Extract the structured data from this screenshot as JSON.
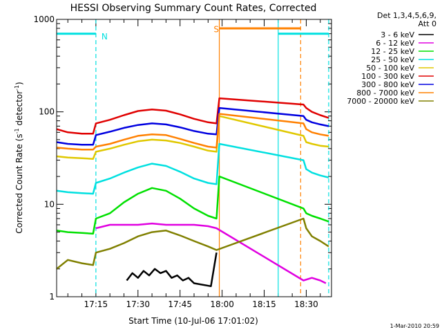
{
  "chart_data": {
    "type": "line",
    "title": "HESSI Observing Summary Count Rates, Corrected",
    "xlabel": "Start Time (10-Jul-06 17:01:02)",
    "ylabel": "Corrected Count Rate (s",
    "ylabel_sup1": "-1",
    "ylabel_mid": " detector",
    "ylabel_sup2": "-1",
    "ylabel_end": ")",
    "y_scale": "log",
    "ylim": [
      1,
      1000
    ],
    "xlim": [
      "17:01",
      "18:39"
    ],
    "x_ticks": [
      "17:15",
      "17:30",
      "17:45",
      "18:00",
      "18:15",
      "18:30"
    ],
    "y_ticks": [
      "1",
      "10",
      "100",
      "1000"
    ],
    "timestamp": "1-Mar-2010 20:59",
    "legend_title_line1": "Det 1,3,4,5,6,9,",
    "legend_title_line2": "Att 0",
    "annotations": [
      {
        "label": "N",
        "color": "#00e0e0"
      },
      {
        "label": "S",
        "color": "#ff8000"
      }
    ],
    "flag_bars": [
      {
        "name": "night",
        "color": "#00e0e0",
        "intervals": [
          [
            "17:01",
            "17:15"
          ],
          [
            "18:20",
            "18:38"
          ]
        ],
        "level": 700
      },
      {
        "name": "saa",
        "color": "#ff8000",
        "intervals": [
          [
            "17:59",
            "18:28"
          ]
        ],
        "level": 800
      }
    ],
    "vertical_lines": [
      {
        "time": "17:15",
        "color": "#00e0e0",
        "style": "dashed"
      },
      {
        "time": "18:20",
        "color": "#00e0e0",
        "style": "solid"
      },
      {
        "time": "18:38",
        "color": "#00e0e0",
        "style": "dashed"
      },
      {
        "time": "17:59",
        "color": "#ff8000",
        "style": "solid"
      },
      {
        "time": "18:28",
        "color": "#ff8000",
        "style": "dashed"
      }
    ],
    "series": [
      {
        "name": "3 - 6 keV",
        "color": "#000000",
        "x": [
          "17:26",
          "17:28",
          "17:30",
          "17:32",
          "17:34",
          "17:36",
          "17:38",
          "17:40",
          "17:42",
          "17:44",
          "17:46",
          "17:48",
          "17:50",
          "17:56",
          "17:58"
        ],
        "y": [
          1.5,
          1.8,
          1.6,
          1.9,
          1.7,
          2.0,
          1.8,
          1.9,
          1.6,
          1.7,
          1.5,
          1.6,
          1.4,
          1.3,
          3.0
        ]
      },
      {
        "name": "6 - 12 keV",
        "color": "#e000e0",
        "x": [
          "17:15",
          "17:20",
          "17:25",
          "17:30",
          "17:35",
          "17:40",
          "17:45",
          "17:50",
          "17:55",
          "17:58",
          "18:29",
          "18:32",
          "18:35",
          "18:37"
        ],
        "y": [
          5.5,
          6.0,
          6.0,
          6.0,
          6.2,
          6.0,
          6.0,
          6.0,
          5.8,
          5.5,
          1.5,
          1.6,
          1.5,
          1.4
        ]
      },
      {
        "name": "12 - 25 keV",
        "color": "#00e000",
        "x": [
          "17:01",
          "17:05",
          "17:10",
          "17:14",
          "17:15",
          "17:20",
          "17:25",
          "17:30",
          "17:35",
          "17:40",
          "17:45",
          "17:50",
          "17:55",
          "17:58",
          "17:59",
          "18:29",
          "18:30",
          "18:32",
          "18:35",
          "18:38"
        ],
        "y": [
          5.2,
          5.0,
          4.9,
          4.8,
          7.0,
          8.0,
          10.5,
          13.0,
          15.0,
          14.0,
          11.5,
          9.0,
          7.5,
          7.0,
          20.0,
          9.0,
          8.0,
          7.5,
          7.0,
          6.5
        ]
      },
      {
        "name": "25 - 50 keV",
        "color": "#00e0e0",
        "x": [
          "17:01",
          "17:05",
          "17:10",
          "17:14",
          "17:15",
          "17:20",
          "17:25",
          "17:30",
          "17:35",
          "17:40",
          "17:45",
          "17:50",
          "17:55",
          "17:58",
          "17:59",
          "18:29",
          "18:30",
          "18:32",
          "18:35",
          "18:38"
        ],
        "y": [
          14.0,
          13.5,
          13.2,
          13.0,
          17.0,
          19.0,
          22.0,
          25.0,
          27.5,
          26.0,
          22.5,
          19.0,
          17.0,
          16.5,
          45.0,
          30.0,
          24.0,
          22.0,
          20.5,
          19.5
        ]
      },
      {
        "name": "50 - 100 keV",
        "color": "#e0c800",
        "x": [
          "17:01",
          "17:05",
          "17:10",
          "17:14",
          "17:15",
          "17:20",
          "17:25",
          "17:30",
          "17:35",
          "17:40",
          "17:45",
          "17:50",
          "17:55",
          "17:58",
          "17:59",
          "18:29",
          "18:30",
          "18:32",
          "18:35",
          "18:38"
        ],
        "y": [
          33.0,
          32.0,
          31.5,
          31.0,
          37.0,
          40.0,
          44.0,
          48.0,
          50.0,
          49.0,
          46.0,
          42.0,
          38.0,
          37.0,
          90.0,
          55.0,
          47.0,
          45.0,
          43.0,
          42.0
        ]
      },
      {
        "name": "100 - 300 keV",
        "color": "#e00000",
        "x": [
          "17:01",
          "17:05",
          "17:10",
          "17:14",
          "17:15",
          "17:20",
          "17:25",
          "17:30",
          "17:35",
          "17:40",
          "17:45",
          "17:50",
          "17:55",
          "17:58",
          "17:59",
          "18:29",
          "18:30",
          "18:32",
          "18:35",
          "18:38"
        ],
        "y": [
          65.0,
          60.0,
          58.0,
          58.0,
          75.0,
          82.0,
          92.0,
          102.0,
          106.0,
          103.0,
          94.0,
          84.0,
          77.0,
          75.0,
          140.0,
          120.0,
          110.0,
          100.0,
          92.0,
          86.0
        ]
      },
      {
        "name": "300 - 800 keV",
        "color": "#0000e0",
        "x": [
          "17:01",
          "17:05",
          "17:10",
          "17:14",
          "17:15",
          "17:20",
          "17:25",
          "17:30",
          "17:35",
          "17:40",
          "17:45",
          "17:50",
          "17:55",
          "17:58",
          "17:59",
          "18:29",
          "18:30",
          "18:32",
          "18:35",
          "18:38"
        ],
        "y": [
          47.0,
          45.0,
          44.0,
          44.0,
          56.0,
          61.0,
          67.0,
          72.0,
          75.0,
          73.0,
          68.0,
          62.0,
          58.0,
          57.0,
          110.0,
          90.0,
          82.0,
          77.0,
          73.0,
          70.0
        ]
      },
      {
        "name": "800 - 7000 keV",
        "color": "#ff8000",
        "x": [
          "17:01",
          "17:05",
          "17:10",
          "17:14",
          "17:15",
          "17:20",
          "17:25",
          "17:30",
          "17:35",
          "17:40",
          "17:45",
          "17:50",
          "17:55",
          "17:58",
          "17:59",
          "18:29",
          "18:30",
          "18:32",
          "18:35",
          "18:38"
        ],
        "y": [
          41.0,
          40.0,
          39.0,
          39.0,
          42.0,
          45.0,
          50.0,
          55.0,
          57.0,
          56.0,
          51.0,
          46.0,
          42.0,
          41.0,
          95.0,
          75.0,
          65.0,
          60.0,
          57.0,
          55.0
        ]
      },
      {
        "name": "7000 - 20000 keV",
        "color": "#808000",
        "x": [
          "17:01",
          "17:05",
          "17:10",
          "17:14",
          "17:15",
          "17:20",
          "17:25",
          "17:30",
          "17:35",
          "17:40",
          "17:45",
          "17:50",
          "17:55",
          "17:58",
          "18:29",
          "18:30",
          "18:32",
          "18:35",
          "18:38"
        ],
        "y": [
          2.0,
          2.5,
          2.3,
          2.2,
          3.0,
          3.3,
          3.8,
          4.5,
          5.0,
          5.2,
          4.6,
          4.0,
          3.5,
          3.2,
          7.0,
          5.5,
          4.5,
          4.0,
          3.5
        ]
      }
    ]
  }
}
